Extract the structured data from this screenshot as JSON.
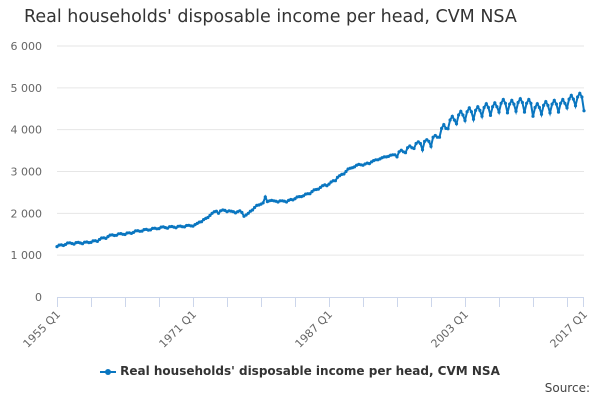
{
  "chart_data": {
    "type": "line",
    "title": "Real households' disposable income per head, CVM NSA",
    "xlabel": "",
    "ylabel": "",
    "start": "1955 Q1",
    "end": "2017 Q1",
    "frequency": "quarterly",
    "x_tick_labels": [
      "1955 Q1",
      "1971 Q1",
      "1987 Q1",
      "2003 Q1",
      "2017 Q1"
    ],
    "y_tick_labels": [
      "0",
      "1 000",
      "2 000",
      "3 000",
      "4 000",
      "5 000",
      "6 000"
    ],
    "ylim": [
      0,
      6000
    ],
    "grid": "horizontal",
    "legend_position": "bottom",
    "series": [
      {
        "name": "Real households' disposable income per head, CVM NSA",
        "color": "#0a76c0",
        "values": [
          1205,
          1240,
          1245,
          1230,
          1255,
          1290,
          1295,
          1280,
          1265,
          1300,
          1305,
          1290,
          1275,
          1310,
          1315,
          1300,
          1305,
          1340,
          1345,
          1330,
          1375,
          1410,
          1415,
          1400,
          1445,
          1480,
          1485,
          1470,
          1475,
          1510,
          1515,
          1500,
          1495,
          1530,
          1535,
          1520,
          1545,
          1580,
          1585,
          1570,
          1575,
          1610,
          1615,
          1600,
          1605,
          1640,
          1645,
          1630,
          1635,
          1670,
          1675,
          1660,
          1645,
          1680,
          1685,
          1670,
          1655,
          1690,
          1695,
          1680,
          1675,
          1710,
          1715,
          1700,
          1695,
          1730,
          1760,
          1790,
          1800,
          1850,
          1880,
          1900,
          1950,
          2000,
          2040,
          2050,
          2000,
          2060,
          2080,
          2070,
          2040,
          2060,
          2050,
          2040,
          2010,
          2040,
          2060,
          2020,
          1930,
          1960,
          2000,
          2050,
          2080,
          2140,
          2190,
          2200,
          2220,
          2250,
          2390,
          2280,
          2300,
          2310,
          2300,
          2290,
          2270,
          2300,
          2300,
          2290,
          2270,
          2310,
          2330,
          2320,
          2350,
          2390,
          2400,
          2400,
          2420,
          2460,
          2470,
          2470,
          2520,
          2560,
          2570,
          2580,
          2620,
          2660,
          2680,
          2660,
          2700,
          2750,
          2780,
          2780,
          2860,
          2900,
          2930,
          2940,
          3000,
          3060,
          3080,
          3090,
          3110,
          3150,
          3170,
          3160,
          3150,
          3180,
          3200,
          3190,
          3230,
          3260,
          3280,
          3280,
          3300,
          3330,
          3350,
          3350,
          3360,
          3390,
          3400,
          3400,
          3350,
          3470,
          3510,
          3470,
          3450,
          3570,
          3610,
          3570,
          3550,
          3670,
          3710,
          3670,
          3520,
          3720,
          3760,
          3720,
          3600,
          3820,
          3860,
          3820,
          3820,
          4030,
          4120,
          4030,
          4020,
          4230,
          4320,
          4230,
          4140,
          4350,
          4440,
          4350,
          4220,
          4430,
          4520,
          4430,
          4250,
          4460,
          4550,
          4460,
          4320,
          4530,
          4620,
          4530,
          4340,
          4550,
          4640,
          4550,
          4420,
          4630,
          4720,
          4630,
          4400,
          4610,
          4700,
          4610,
          4440,
          4650,
          4740,
          4650,
          4420,
          4630,
          4720,
          4630,
          4320,
          4530,
          4620,
          4530,
          4370,
          4580,
          4670,
          4580,
          4400,
          4610,
          4700,
          4610,
          4420,
          4630,
          4720,
          4630,
          4520,
          4730,
          4820,
          4730,
          4570,
          4780,
          4870,
          4780,
          4450
        ]
      }
    ]
  },
  "source_label": "Source:"
}
